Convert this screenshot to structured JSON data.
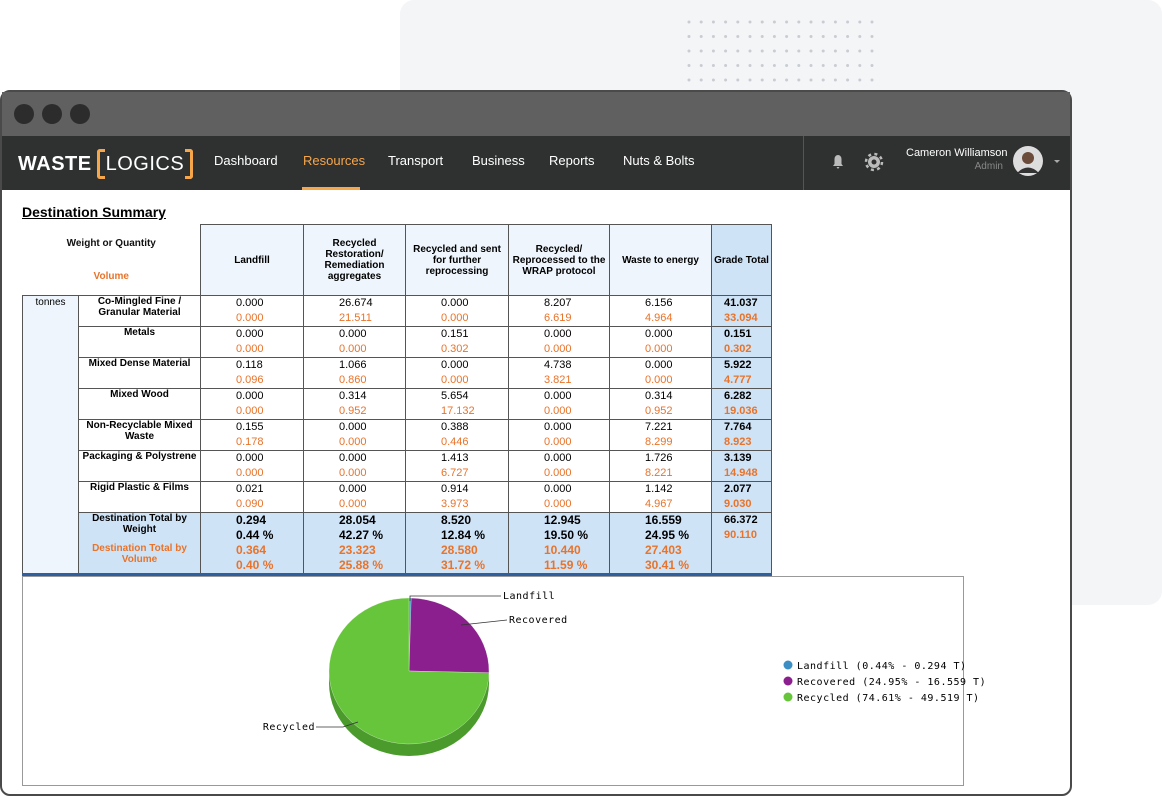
{
  "nav": {
    "logo_main": "WASTE",
    "logo_accent": "LOGICS",
    "items": [
      "Dashboard",
      "Resources",
      "Transport",
      "Business",
      "Reports",
      "Nuts & Bolts"
    ]
  },
  "user": {
    "name": "Cameron Williamson",
    "role": "Admin"
  },
  "report": {
    "title": "Destination Summary",
    "header": {
      "weight_label": "Weight or Quantity",
      "volume_label": "Volume",
      "columns": [
        "Landfill",
        "Recycled Restoration/ Remediation aggregates",
        "Recycled and sent for further reprocessing",
        "Recycled/ Reprocessed to the WRAP protocol",
        "Waste to energy",
        "Grade Total"
      ]
    },
    "unit": "tonnes",
    "rows": [
      {
        "name": "Co-Mingled Fine / Granular Material",
        "weight": [
          "0.000",
          "26.674",
          "0.000",
          "8.207",
          "6.156",
          "41.037"
        ],
        "volume": [
          "0.000",
          "21.511",
          "0.000",
          "6.619",
          "4.964",
          "33.094"
        ]
      },
      {
        "name": "Metals",
        "weight": [
          "0.000",
          "0.000",
          "0.151",
          "0.000",
          "0.000",
          "0.151"
        ],
        "volume": [
          "0.000",
          "0.000",
          "0.302",
          "0.000",
          "0.000",
          "0.302"
        ]
      },
      {
        "name": "Mixed Dense Material",
        "weight": [
          "0.118",
          "1.066",
          "0.000",
          "4.738",
          "0.000",
          "5.922"
        ],
        "volume": [
          "0.096",
          "0.860",
          "0.000",
          "3.821",
          "0.000",
          "4.777"
        ]
      },
      {
        "name": "Mixed Wood",
        "weight": [
          "0.000",
          "0.314",
          "5.654",
          "0.000",
          "0.314",
          "6.282"
        ],
        "volume": [
          "0.000",
          "0.952",
          "17.132",
          "0.000",
          "0.952",
          "19.036"
        ]
      },
      {
        "name": "Non-Recyclable Mixed Waste",
        "weight": [
          "0.155",
          "0.000",
          "0.388",
          "0.000",
          "7.221",
          "7.764"
        ],
        "volume": [
          "0.178",
          "0.000",
          "0.446",
          "0.000",
          "8.299",
          "8.923"
        ]
      },
      {
        "name": "Packaging & Polystrene",
        "weight": [
          "0.000",
          "0.000",
          "1.413",
          "0.000",
          "1.726",
          "3.139"
        ],
        "volume": [
          "0.000",
          "0.000",
          "6.727",
          "0.000",
          "8.221",
          "14.948"
        ]
      },
      {
        "name": "Rigid Plastic & Films",
        "weight": [
          "0.021",
          "0.000",
          "0.914",
          "0.000",
          "1.142",
          "2.077"
        ],
        "volume": [
          "0.090",
          "0.000",
          "3.973",
          "0.000",
          "4.967",
          "9.030"
        ]
      }
    ],
    "totals": {
      "weight_label": "Destination Total by Weight",
      "weight": [
        "0.294",
        "28.054",
        "8.520",
        "12.945",
        "16.559",
        "66.372"
      ],
      "weight_pct": [
        "0.44 %",
        "42.27 %",
        "12.84 %",
        "19.50 %",
        "24.95 %"
      ],
      "volume_label": "Destination Total by Volume",
      "volume": [
        "0.364",
        "23.323",
        "28.580",
        "10.440",
        "27.403",
        "90.110"
      ],
      "volume_pct": [
        "0.40 %",
        "25.88 %",
        "31.72 %",
        "11.59 %",
        "30.41 %"
      ]
    }
  },
  "chart_data": {
    "type": "pie",
    "categories": [
      "Landfill",
      "Recovered",
      "Recycled"
    ],
    "values": [
      0.44,
      24.95,
      74.61
    ],
    "colors": [
      "#3b8fc4",
      "#8b1f8e",
      "#66c53b"
    ],
    "legend": [
      "Landfill (0.44% - 0.294 T)",
      "Recovered (24.95% - 16.559 T)",
      "Recycled (74.61% - 49.519 T)"
    ]
  }
}
